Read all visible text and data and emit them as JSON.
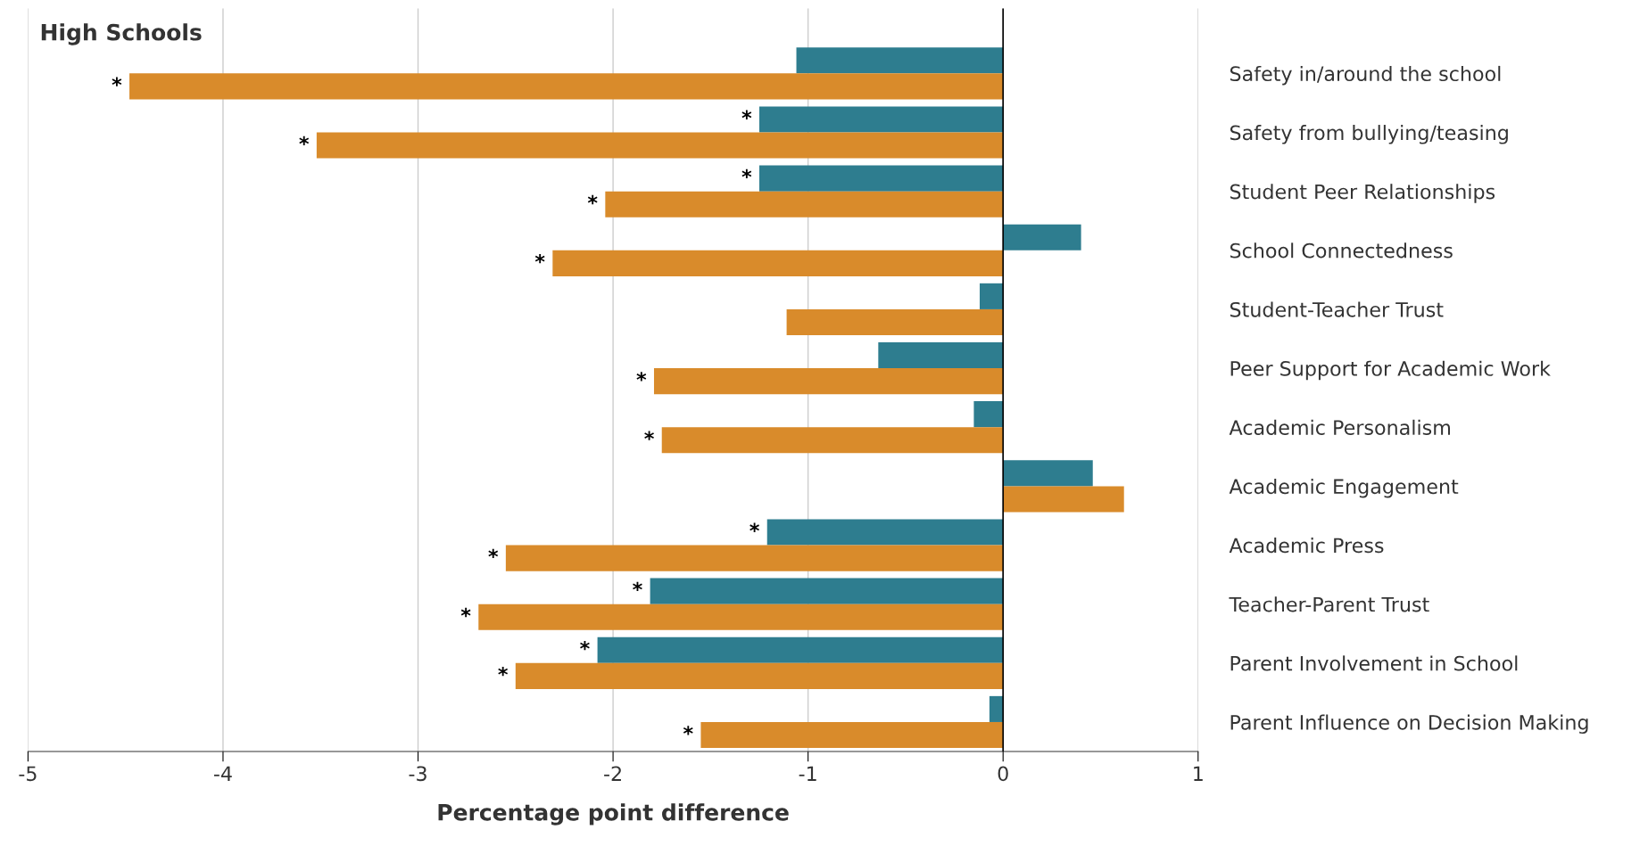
{
  "chart_data": {
    "type": "bar",
    "orientation": "horizontal",
    "title": "High Schools",
    "xlabel": "Percentage point difference",
    "categories": [
      "Safety in/around the school",
      "Safety from bullying/teasing",
      "Student Peer Relationships",
      "School Connectedness",
      "Student-Teacher Trust",
      "Peer Support for Academic Work",
      "Academic Personalism",
      "Academic Engagement",
      "Academic Press",
      "Teacher-Parent Trust",
      "Parent Involvement in School",
      "Parent Influence on Decision Making"
    ],
    "series": [
      {
        "color": "#2e7d8f",
        "values": [
          -1.06,
          -1.25,
          -1.25,
          0.4,
          -0.12,
          -0.64,
          -0.15,
          0.46,
          -1.21,
          -1.81,
          -2.08,
          -0.07
        ],
        "value_labels": [
          null,
          "*",
          "*",
          null,
          null,
          null,
          null,
          null,
          "*",
          "*",
          "*",
          null
        ]
      },
      {
        "color": "#d98b2b",
        "values": [
          -4.48,
          -3.52,
          -2.04,
          -2.31,
          -1.11,
          -1.79,
          -1.75,
          0.62,
          -2.55,
          -2.69,
          -2.5,
          -1.55
        ],
        "value_labels": [
          "*",
          "*",
          "*",
          "*",
          null,
          "*",
          "*",
          null,
          "*",
          "*",
          "*",
          "*"
        ]
      }
    ],
    "xlim": [
      -5,
      1
    ],
    "xticks": [
      -5,
      -4,
      -3,
      -2,
      -1,
      0,
      1
    ],
    "grid": "x",
    "ref_lines": [
      {
        "axis": "x",
        "value": 0,
        "color": "#000000"
      }
    ]
  }
}
